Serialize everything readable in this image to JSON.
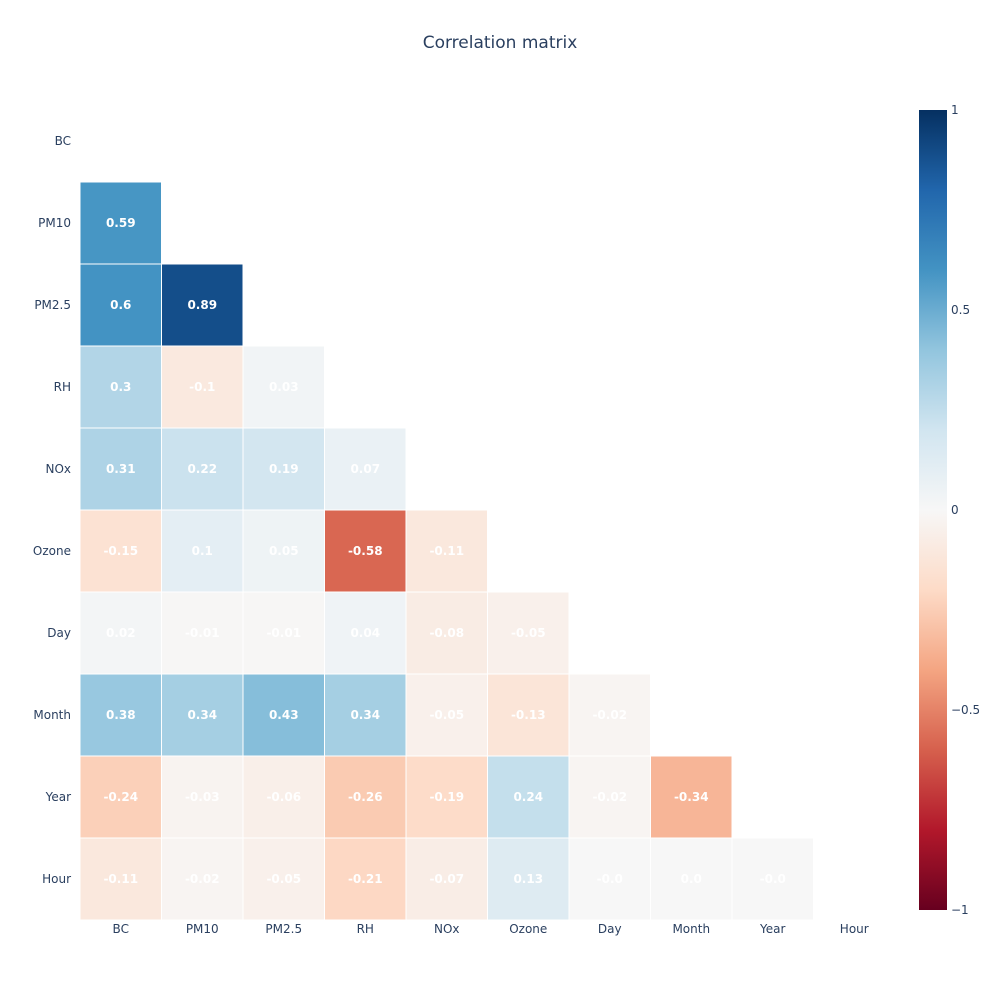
{
  "chart_data": {
    "type": "heatmap",
    "title": "Correlation matrix",
    "variables": [
      "BC",
      "PM10",
      "PM2.5",
      "RH",
      "NOx",
      "Ozone",
      "Day",
      "Month",
      "Year",
      "Hour"
    ],
    "z": [
      [
        null,
        null,
        null,
        null,
        null,
        null,
        null,
        null,
        null,
        null
      ],
      [
        0.59,
        null,
        null,
        null,
        null,
        null,
        null,
        null,
        null,
        null
      ],
      [
        0.6,
        0.89,
        null,
        null,
        null,
        null,
        null,
        null,
        null,
        null
      ],
      [
        0.3,
        -0.1,
        0.03,
        null,
        null,
        null,
        null,
        null,
        null,
        null
      ],
      [
        0.31,
        0.22,
        0.19,
        0.07,
        null,
        null,
        null,
        null,
        null,
        null
      ],
      [
        -0.15,
        0.1,
        0.05,
        -0.58,
        -0.11,
        null,
        null,
        null,
        null,
        null
      ],
      [
        0.02,
        -0.01,
        -0.01,
        0.04,
        -0.08,
        -0.05,
        null,
        null,
        null,
        null
      ],
      [
        0.38,
        0.34,
        0.43,
        0.34,
        -0.05,
        -0.13,
        -0.02,
        null,
        null,
        null
      ],
      [
        -0.24,
        -0.03,
        -0.06,
        -0.26,
        -0.19,
        0.24,
        -0.02,
        -0.34,
        null,
        null
      ],
      [
        -0.11,
        -0.02,
        -0.05,
        -0.21,
        -0.07,
        0.13,
        -0.0,
        0.0,
        -0.0,
        null
      ]
    ],
    "text": [
      [
        null,
        null,
        null,
        null,
        null,
        null,
        null,
        null,
        null,
        null
      ],
      [
        "0.59",
        null,
        null,
        null,
        null,
        null,
        null,
        null,
        null,
        null
      ],
      [
        "0.6",
        "0.89",
        null,
        null,
        null,
        null,
        null,
        null,
        null,
        null
      ],
      [
        "0.3",
        "-0.1",
        "0.03",
        null,
        null,
        null,
        null,
        null,
        null,
        null
      ],
      [
        "0.31",
        "0.22",
        "0.19",
        "0.07",
        null,
        null,
        null,
        null,
        null,
        null
      ],
      [
        "-0.15",
        "0.1",
        "0.05",
        "-0.58",
        "-0.11",
        null,
        null,
        null,
        null,
        null
      ],
      [
        "0.02",
        "-0.01",
        "-0.01",
        "0.04",
        "-0.08",
        "-0.05",
        null,
        null,
        null,
        null
      ],
      [
        "0.38",
        "0.34",
        "0.43",
        "0.34",
        "-0.05",
        "-0.13",
        "-0.02",
        null,
        null,
        null
      ],
      [
        "-0.24",
        "-0.03",
        "-0.06",
        "-0.26",
        "-0.19",
        "0.24",
        "-0.02",
        "-0.34",
        null,
        null
      ],
      [
        "-0.11",
        "-0.02",
        "-0.05",
        "-0.21",
        "-0.07",
        "0.13",
        "-0.0",
        "0.0",
        "-0.0",
        null
      ]
    ],
    "colorscale": "RdBu",
    "zmin": -1,
    "zmax": 1,
    "colorbar_ticks": [
      "1",
      "0.5",
      "0",
      "−0.5",
      "−1"
    ],
    "colorbar_tick_values": [
      1,
      0.5,
      0,
      -0.5,
      -1
    ],
    "legend_placement": "right",
    "grid": false
  }
}
